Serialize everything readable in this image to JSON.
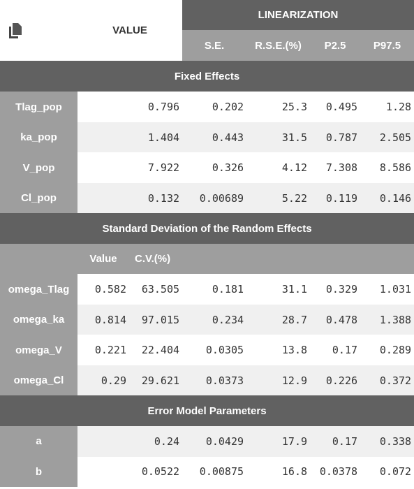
{
  "header": {
    "value_label": "VALUE",
    "linearization_label": "LINEARIZATION",
    "columns": [
      "S.E.",
      "R.S.E.(%)",
      "P2.5",
      "P97.5"
    ]
  },
  "fixed_effects": {
    "title": "Fixed Effects",
    "rows": [
      {
        "name": "Tlag_pop",
        "value": "0.796",
        "se": "0.202",
        "rse": "25.3",
        "p2_5": "0.495",
        "p97_5": "1.28"
      },
      {
        "name": "ka_pop",
        "value": "1.404",
        "se": "0.443",
        "rse": "31.5",
        "p2_5": "0.787",
        "p97_5": "2.505"
      },
      {
        "name": "V_pop",
        "value": "7.922",
        "se": "0.326",
        "rse": "4.12",
        "p2_5": "7.308",
        "p97_5": "8.586"
      },
      {
        "name": "Cl_pop",
        "value": "0.132",
        "se": "0.00689",
        "rse": "5.22",
        "p2_5": "0.119",
        "p97_5": "0.146"
      }
    ]
  },
  "random_effects": {
    "title": "Standard Deviation of the Random Effects",
    "subheader": {
      "value": "Value",
      "cv": "C.V.(%)"
    },
    "rows": [
      {
        "name": "omega_Tlag",
        "value": "0.582",
        "cv": "63.505",
        "se": "0.181",
        "rse": "31.1",
        "p2_5": "0.329",
        "p97_5": "1.031"
      },
      {
        "name": "omega_ka",
        "value": "0.814",
        "cv": "97.015",
        "se": "0.234",
        "rse": "28.7",
        "p2_5": "0.478",
        "p97_5": "1.388"
      },
      {
        "name": "omega_V",
        "value": "0.221",
        "cv": "22.404",
        "se": "0.0305",
        "rse": "13.8",
        "p2_5": "0.17",
        "p97_5": "0.289"
      },
      {
        "name": "omega_Cl",
        "value": "0.29",
        "cv": "29.621",
        "se": "0.0373",
        "rse": "12.9",
        "p2_5": "0.226",
        "p97_5": "0.372"
      }
    ]
  },
  "error_model": {
    "title": "Error Model Parameters",
    "rows": [
      {
        "name": "a",
        "value": "0.24",
        "se": "0.0429",
        "rse": "17.9",
        "p2_5": "0.17",
        "p97_5": "0.338"
      },
      {
        "name": "b",
        "value": "0.0522",
        "se": "0.00875",
        "rse": "16.8",
        "p2_5": "0.0378",
        "p97_5": "0.072"
      }
    ]
  },
  "colors": {
    "dark_header": "#616161",
    "light_header": "#9e9e9e",
    "alt_row": "#f0f0f0",
    "text": "#333333"
  },
  "icons": {
    "copy": "copy-icon"
  }
}
